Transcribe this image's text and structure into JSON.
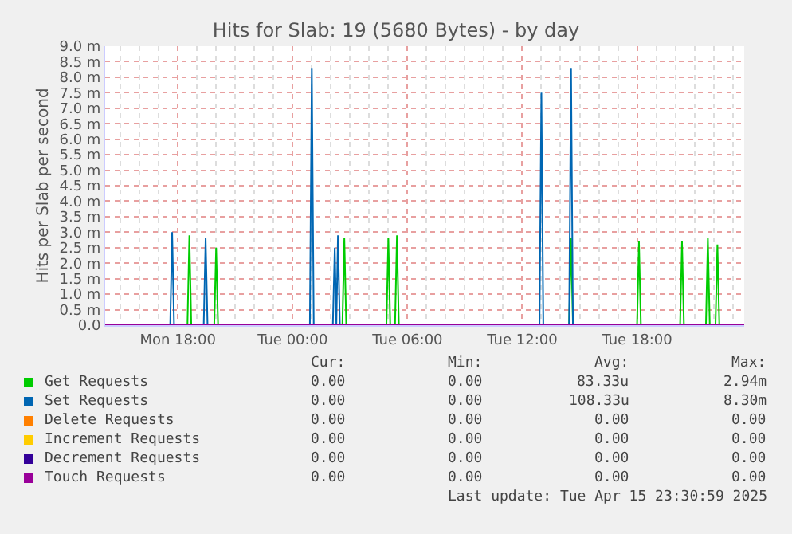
{
  "chart_data": {
    "type": "line",
    "title": "Hits for Slab: 19 (5680 Bytes) - by day",
    "ylabel": "Hits per Slab per second",
    "xlim": [
      "2025-04-14T14:12",
      "2025-04-15T23:36"
    ],
    "xticks": [
      {
        "value": "2025-04-14T18:00",
        "label": "Mon 18:00"
      },
      {
        "value": "2025-04-15T00:00",
        "label": "Tue 00:00"
      },
      {
        "value": "2025-04-15T06:00",
        "label": "Tue 06:00"
      },
      {
        "value": "2025-04-15T12:00",
        "label": "Tue 12:00"
      },
      {
        "value": "2025-04-15T18:00",
        "label": "Tue 18:00"
      }
    ],
    "ylim": [
      0,
      9
    ],
    "yticks": [
      {
        "value": 0,
        "label": "0.0"
      },
      {
        "value": 0.5,
        "label": "0.5 m"
      },
      {
        "value": 1,
        "label": "1.0 m"
      },
      {
        "value": 1.5,
        "label": "1.5 m"
      },
      {
        "value": 2,
        "label": "2.0 m"
      },
      {
        "value": 2.5,
        "label": "2.5 m"
      },
      {
        "value": 3,
        "label": "3.0 m"
      },
      {
        "value": 3.5,
        "label": "3.5 m"
      },
      {
        "value": 4,
        "label": "4.0 m"
      },
      {
        "value": 4.5,
        "label": "4.5 m"
      },
      {
        "value": 5,
        "label": "5.0 m"
      },
      {
        "value": 5.5,
        "label": "5.5 m"
      },
      {
        "value": 6,
        "label": "6.0 m"
      },
      {
        "value": 6.5,
        "label": "6.5 m"
      },
      {
        "value": 7,
        "label": "7.0 m"
      },
      {
        "value": 7.5,
        "label": "7.5 m"
      },
      {
        "value": 8,
        "label": "8.0 m"
      },
      {
        "value": 8.5,
        "label": "8.5 m"
      },
      {
        "value": 9,
        "label": "9.0 m"
      }
    ],
    "grid": true,
    "legend": "bottom",
    "marker": "none",
    "line_style": "solid",
    "series": [
      {
        "name": "Get Requests",
        "color": "#00cc00",
        "x": [
          "2025-04-14T18:30",
          "2025-04-14T18:36",
          "2025-04-14T18:42",
          "2025-04-14T19:54",
          "2025-04-14T20:00",
          "2025-04-14T20:06",
          "2025-04-15T02:36",
          "2025-04-15T02:42",
          "2025-04-15T02:48",
          "2025-04-15T04:54",
          "2025-04-15T05:00",
          "2025-04-15T05:06",
          "2025-04-15T05:21",
          "2025-04-15T05:27",
          "2025-04-15T05:33",
          "2025-04-15T14:27",
          "2025-04-15T14:33",
          "2025-04-15T14:39",
          "2025-04-15T18:00",
          "2025-04-15T18:06",
          "2025-04-15T18:12",
          "2025-04-15T20:15",
          "2025-04-15T20:21",
          "2025-04-15T20:27",
          "2025-04-15T21:36",
          "2025-04-15T21:42",
          "2025-04-15T21:48",
          "2025-04-15T22:06",
          "2025-04-15T22:12",
          "2025-04-15T22:18"
        ],
        "values": [
          0,
          2.9,
          0,
          0,
          2.5,
          0,
          0,
          2.8,
          0,
          0,
          2.8,
          0,
          0,
          2.9,
          0,
          0,
          2.8,
          0,
          0,
          2.7,
          0,
          0,
          2.7,
          0,
          0,
          2.8,
          0,
          0,
          2.6,
          0
        ]
      },
      {
        "name": "Set Requests",
        "color": "#0066b3",
        "x": [
          "2025-04-14T17:36",
          "2025-04-14T17:42",
          "2025-04-14T17:48",
          "2025-04-14T19:21",
          "2025-04-14T19:27",
          "2025-04-14T19:33",
          "2025-04-15T00:54",
          "2025-04-15T01:00",
          "2025-04-15T01:06",
          "2025-04-15T02:06",
          "2025-04-15T02:12",
          "2025-04-15T02:17",
          "2025-04-15T02:22",
          "2025-04-15T02:28",
          "2025-04-15T12:54",
          "2025-04-15T13:00",
          "2025-04-15T13:06",
          "2025-04-15T14:27",
          "2025-04-15T14:33",
          "2025-04-15T14:39"
        ],
        "values": [
          0,
          3.0,
          0,
          0,
          2.8,
          0,
          0,
          8.3,
          0,
          0,
          2.5,
          0,
          2.9,
          0,
          0,
          7.5,
          0,
          0,
          8.3,
          0
        ]
      },
      {
        "name": "Delete Requests",
        "color": "#ff8000"
      },
      {
        "name": "Increment Requests",
        "color": "#ffcc00"
      },
      {
        "name": "Decrement Requests",
        "color": "#330099"
      },
      {
        "name": "Touch Requests",
        "color": "#990099",
        "x": [
          "2025-04-14T14:12",
          "2025-04-15T23:36"
        ],
        "values": [
          0,
          0
        ]
      }
    ],
    "annotations": [
      "Cur:",
      "Min:",
      "Avg:",
      "Max:",
      "0.00",
      "0.00",
      "83.33u",
      "2.94m",
      "0.00",
      "0.00",
      "108.33u",
      "8.30m",
      "0.00",
      "0.00",
      "0.00",
      "0.00",
      "0.00",
      "0.00",
      "0.00",
      "0.00",
      "0.00",
      "0.00",
      "0.00",
      "0.00",
      "0.00",
      "0.00",
      "0.00",
      "0.00",
      "Last update: Tue Apr 15 23:30:59 2025"
    ]
  }
}
